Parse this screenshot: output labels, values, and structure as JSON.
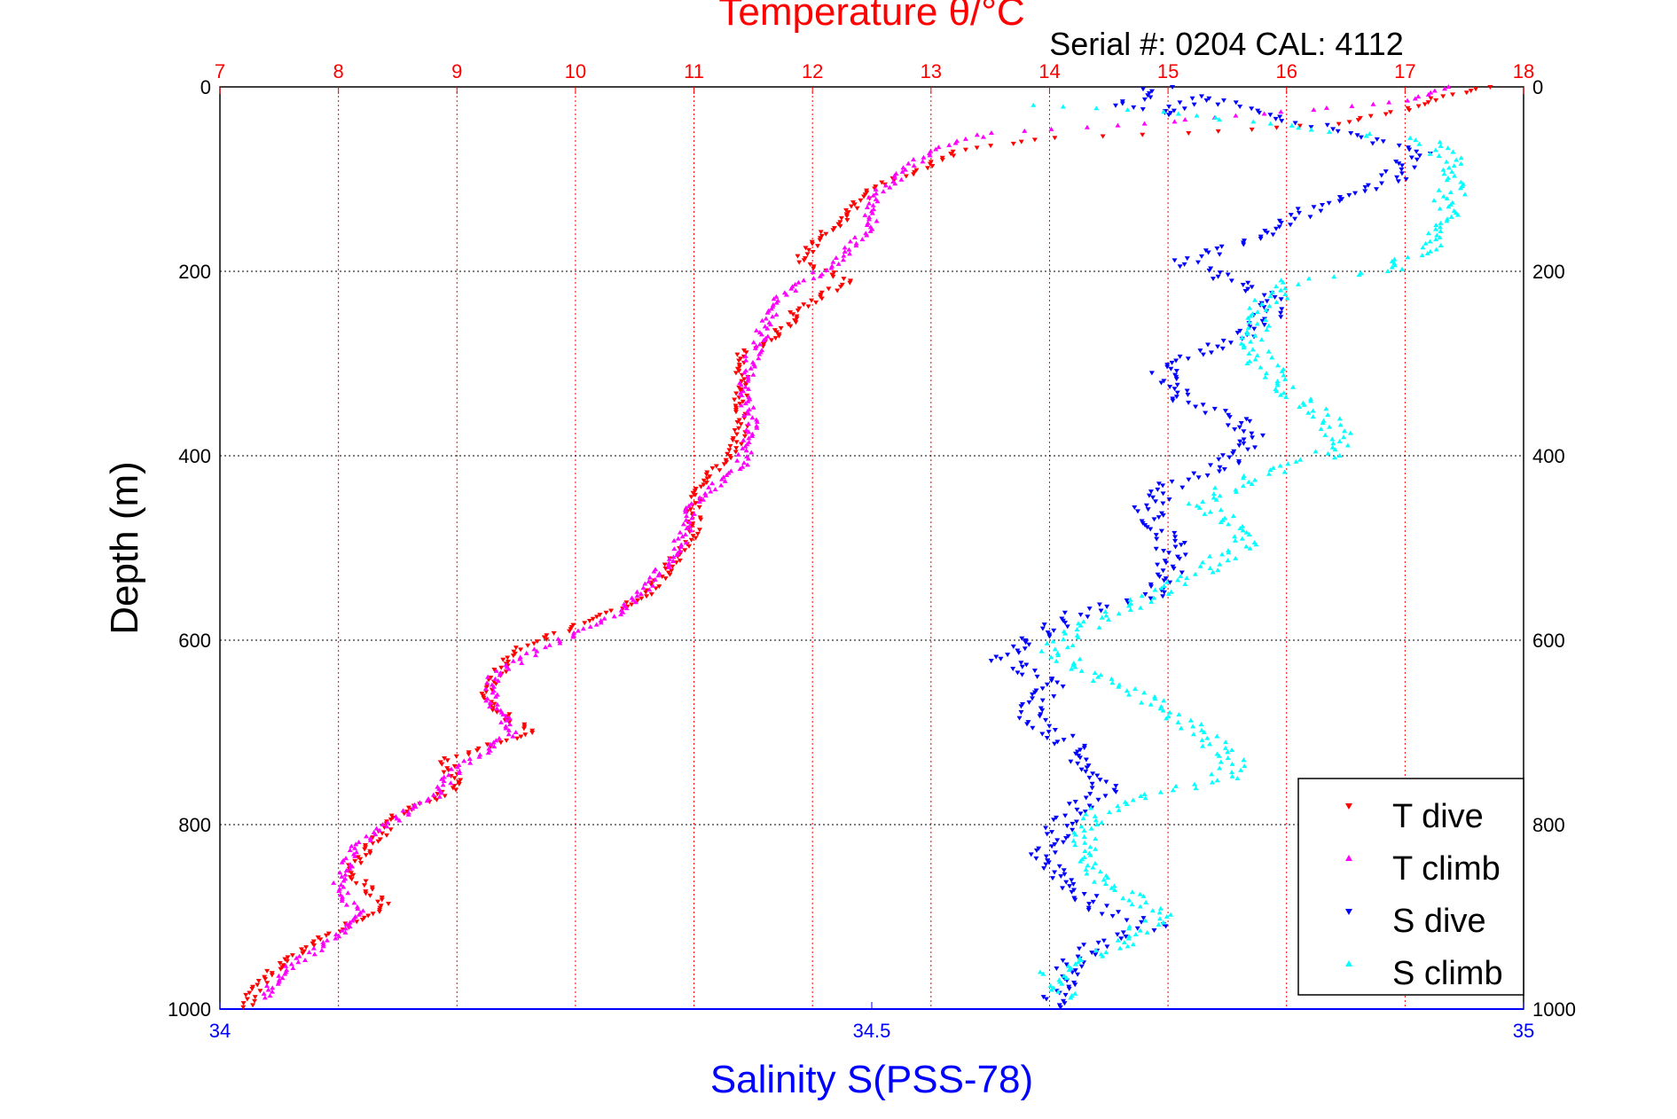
{
  "chart_data": {
    "type": "scatter",
    "title": "Temperature θ/°C",
    "subtitle": "Serial #: 0204  CAL: 4112",
    "ylabel": "Depth (m)",
    "xlabel": "Salinity S(PSS-78)",
    "top_axis_color": "#ff0000",
    "bottom_axis_color": "#0000ff",
    "temperature_axis": {
      "range": [
        7,
        18
      ],
      "ticks": [
        "7",
        "8",
        "9",
        "10",
        "11",
        "12",
        "13",
        "14",
        "15",
        "16",
        "17",
        "18"
      ]
    },
    "salinity_axis": {
      "range": [
        34,
        35
      ],
      "ticks": [
        "34",
        "34.5",
        "35"
      ],
      "tick_values": [
        34,
        34.5,
        35
      ]
    },
    "depth_axis": {
      "range": [
        0,
        1000
      ],
      "reversed": true,
      "ticks": [
        "0",
        "200",
        "400",
        "600",
        "800",
        "1000"
      ],
      "tick_values": [
        0,
        200,
        400,
        600,
        800,
        1000
      ]
    },
    "grid": true,
    "legend_position": "bottom-right",
    "series": [
      {
        "name": "T dive",
        "axis": "temperature",
        "color": "#ff0000",
        "marker": "triangle-down",
        "points": [
          [
            17.7,
            0
          ],
          [
            17.3,
            10
          ],
          [
            17.0,
            25
          ],
          [
            16.4,
            40
          ],
          [
            15.2,
            50
          ],
          [
            14.0,
            55
          ],
          [
            13.2,
            70
          ],
          [
            12.9,
            90
          ],
          [
            12.5,
            110
          ],
          [
            12.3,
            140
          ],
          [
            12.0,
            170
          ],
          [
            11.9,
            190
          ],
          [
            12.3,
            210
          ],
          [
            11.9,
            240
          ],
          [
            11.7,
            270
          ],
          [
            11.4,
            290
          ],
          [
            11.4,
            330
          ],
          [
            11.4,
            370
          ],
          [
            11.3,
            400
          ],
          [
            11.0,
            440
          ],
          [
            11.0,
            480
          ],
          [
            10.8,
            520
          ],
          [
            10.6,
            550
          ],
          [
            10.3,
            570
          ],
          [
            9.9,
            590
          ],
          [
            9.5,
            610
          ],
          [
            9.2,
            660
          ],
          [
            9.6,
            700
          ],
          [
            8.9,
            730
          ],
          [
            9.0,
            760
          ],
          [
            8.5,
            790
          ],
          [
            8.3,
            820
          ],
          [
            8.1,
            850
          ],
          [
            8.4,
            890
          ],
          [
            7.9,
            920
          ],
          [
            7.5,
            950
          ],
          [
            7.3,
            980
          ],
          [
            7.2,
            1000
          ]
        ]
      },
      {
        "name": "T climb",
        "axis": "temperature",
        "color": "#ff00ff",
        "marker": "triangle-up",
        "points": [
          [
            17.4,
            0
          ],
          [
            17.0,
            15
          ],
          [
            16.2,
            25
          ],
          [
            14.8,
            40
          ],
          [
            13.5,
            50
          ],
          [
            13.0,
            70
          ],
          [
            12.8,
            90
          ],
          [
            12.5,
            120
          ],
          [
            12.5,
            150
          ],
          [
            12.2,
            190
          ],
          [
            11.7,
            230
          ],
          [
            11.6,
            260
          ],
          [
            11.5,
            290
          ],
          [
            11.4,
            330
          ],
          [
            11.5,
            370
          ],
          [
            11.4,
            410
          ],
          [
            11.0,
            450
          ],
          [
            10.9,
            490
          ],
          [
            10.7,
            530
          ],
          [
            10.4,
            570
          ],
          [
            9.7,
            610
          ],
          [
            9.3,
            640
          ],
          [
            9.3,
            670
          ],
          [
            9.5,
            700
          ],
          [
            9.0,
            740
          ],
          [
            8.8,
            770
          ],
          [
            8.4,
            800
          ],
          [
            8.1,
            830
          ],
          [
            8.0,
            870
          ],
          [
            8.2,
            900
          ],
          [
            7.9,
            930
          ],
          [
            7.5,
            960
          ],
          [
            7.4,
            990
          ]
        ]
      },
      {
        "name": "S dive",
        "axis": "salinity",
        "color": "#0000ff",
        "marker": "triangle-down",
        "points": [
          [
            34.72,
            0
          ],
          [
            34.69,
            20
          ],
          [
            34.73,
            30
          ],
          [
            34.75,
            10
          ],
          [
            34.92,
            70
          ],
          [
            34.9,
            100
          ],
          [
            34.84,
            130
          ],
          [
            34.8,
            160
          ],
          [
            34.74,
            190
          ],
          [
            34.81,
            230
          ],
          [
            34.8,
            260
          ],
          [
            34.75,
            290
          ],
          [
            34.72,
            310
          ],
          [
            34.74,
            340
          ],
          [
            34.78,
            360
          ],
          [
            34.79,
            380
          ],
          [
            34.77,
            410
          ],
          [
            34.73,
            430
          ],
          [
            34.71,
            460
          ],
          [
            34.73,
            490
          ],
          [
            34.73,
            520
          ],
          [
            34.72,
            550
          ],
          [
            34.66,
            570
          ],
          [
            34.62,
            600
          ],
          [
            34.6,
            620
          ],
          [
            34.64,
            650
          ],
          [
            34.62,
            680
          ],
          [
            34.65,
            710
          ],
          [
            34.67,
            740
          ],
          [
            34.68,
            760
          ],
          [
            34.65,
            790
          ],
          [
            34.63,
            830
          ],
          [
            34.65,
            860
          ],
          [
            34.67,
            890
          ],
          [
            34.72,
            910
          ],
          [
            34.67,
            930
          ],
          [
            34.65,
            960
          ],
          [
            34.64,
            1000
          ]
        ]
      },
      {
        "name": "S climb",
        "axis": "salinity",
        "color": "#00ffff",
        "marker": "triangle-up",
        "points": [
          [
            34.62,
            20
          ],
          [
            34.7,
            25
          ],
          [
            34.8,
            40
          ],
          [
            34.93,
            60
          ],
          [
            34.95,
            90
          ],
          [
            34.94,
            130
          ],
          [
            34.93,
            170
          ],
          [
            34.9,
            200
          ],
          [
            34.82,
            210
          ],
          [
            34.8,
            240
          ],
          [
            34.79,
            270
          ],
          [
            34.8,
            300
          ],
          [
            34.82,
            330
          ],
          [
            34.85,
            360
          ],
          [
            34.86,
            380
          ],
          [
            34.85,
            400
          ],
          [
            34.8,
            420
          ],
          [
            34.75,
            450
          ],
          [
            34.77,
            470
          ],
          [
            34.79,
            490
          ],
          [
            34.76,
            520
          ],
          [
            34.72,
            550
          ],
          [
            34.67,
            580
          ],
          [
            34.64,
            610
          ],
          [
            34.67,
            640
          ],
          [
            34.72,
            670
          ],
          [
            34.75,
            700
          ],
          [
            34.78,
            730
          ],
          [
            34.77,
            750
          ],
          [
            34.68,
            780
          ],
          [
            34.66,
            820
          ],
          [
            34.68,
            860
          ],
          [
            34.72,
            900
          ],
          [
            34.69,
            930
          ],
          [
            34.64,
            960
          ],
          [
            34.65,
            990
          ]
        ]
      }
    ]
  }
}
